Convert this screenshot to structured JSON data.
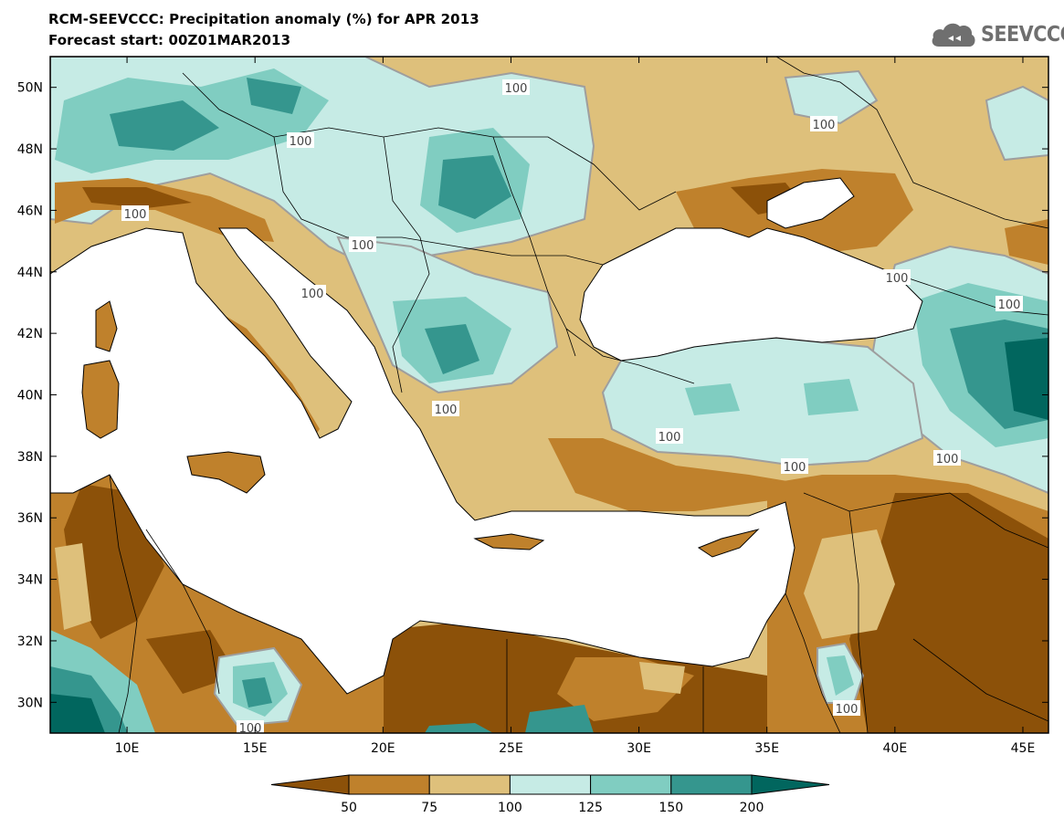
{
  "title": "RCM-SEEVCCC: Precipitation anomaly (%) for APR 2013",
  "subtitle": "Forecast start: 00Z01MAR2013",
  "logo": {
    "icon": "cloud-icon",
    "text": "SEEVCCC"
  },
  "map": {
    "lon_range": [
      7,
      46
    ],
    "lat_range": [
      29,
      51
    ],
    "lon_ticks": [
      "10E",
      "15E",
      "20E",
      "25E",
      "30E",
      "35E",
      "40E",
      "45E"
    ],
    "lat_ticks": [
      "50N",
      "48N",
      "46N",
      "44N",
      "42N",
      "40N",
      "38N",
      "36N",
      "34N",
      "32N",
      "30N"
    ],
    "contour_label": "100"
  },
  "colorbar": {
    "ticks": [
      "50",
      "75",
      "100",
      "125",
      "150",
      "200"
    ],
    "colors": [
      "#8c5109",
      "#bf812c",
      "#dec07b",
      "#c6ebe5",
      "#80cdc1",
      "#35968e",
      "#01665e"
    ]
  },
  "palette": {
    "sea": "#ffffff",
    "gray_contour": "#9e9e9e",
    "border": "#000000"
  }
}
